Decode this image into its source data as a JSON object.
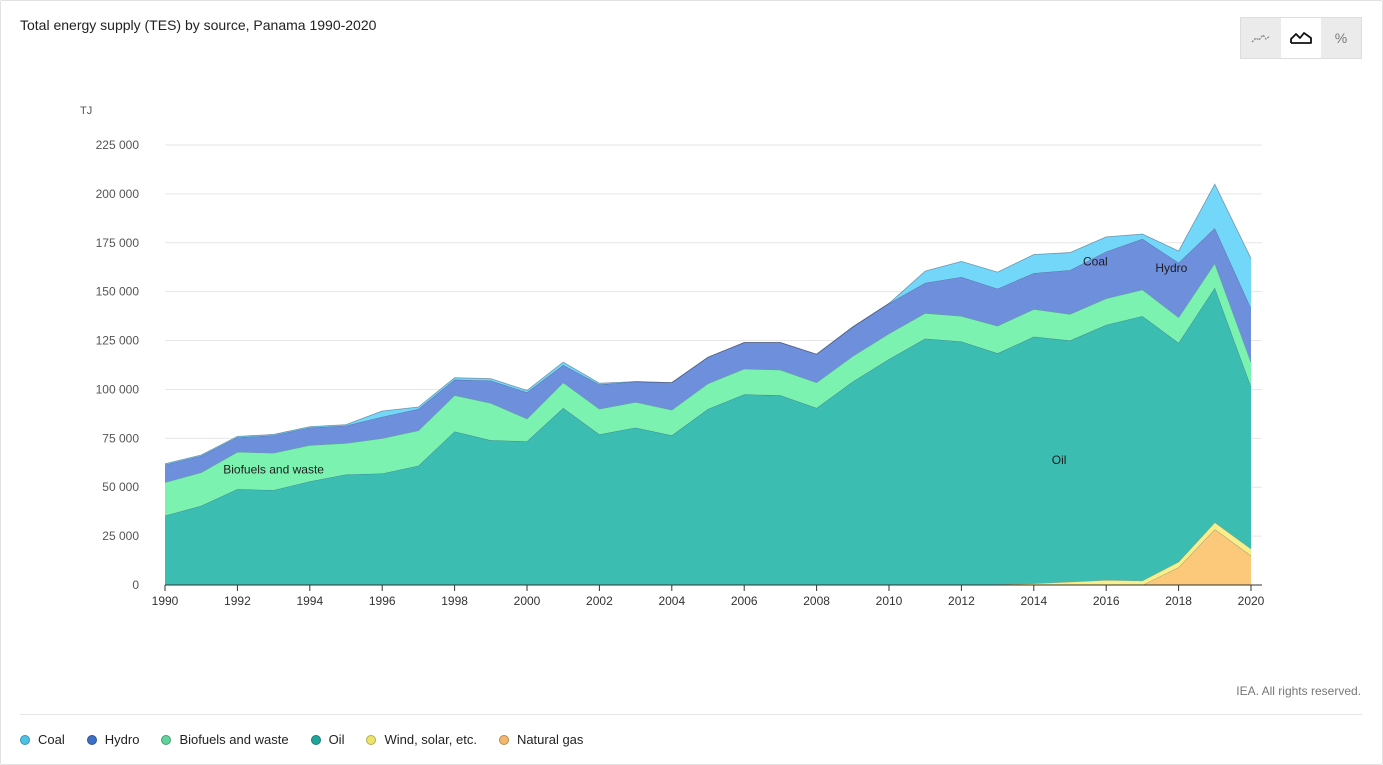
{
  "title": "Total energy supply (TES) by source, Panama 1990-2020",
  "credit": "IEA. All rights reserved.",
  "toolbar": {
    "buttons": [
      {
        "icon": "line-chart-icon",
        "active": false
      },
      {
        "icon": "area-chart-icon",
        "active": true
      },
      {
        "icon": "percent-icon",
        "label": "%",
        "active": false
      }
    ]
  },
  "legend": [
    {
      "label": "Coal",
      "color": "#4cc3e6"
    },
    {
      "label": "Hydro",
      "color": "#3c6fc6"
    },
    {
      "label": "Biofuels and waste",
      "color": "#5fd39a"
    },
    {
      "label": "Oil",
      "color": "#1fa59a"
    },
    {
      "label": "Wind, solar, etc.",
      "color": "#ece46a"
    },
    {
      "label": "Natural gas",
      "color": "#f4b86b"
    }
  ],
  "chart_data": {
    "type": "area",
    "stacked": true,
    "title": "Total energy supply (TES) by source, Panama 1990-2020",
    "ylabel": "TJ",
    "xlabel": "",
    "ylim": [
      0,
      225000
    ],
    "yticks": [
      0,
      25000,
      50000,
      75000,
      100000,
      125000,
      150000,
      175000,
      200000,
      225000
    ],
    "ytick_labels": [
      "0",
      "25 000",
      "50 000",
      "75 000",
      "100 000",
      "125 000",
      "150 000",
      "175 000",
      "200 000",
      "225 000"
    ],
    "xticks": [
      1990,
      1992,
      1994,
      1996,
      1998,
      2000,
      2002,
      2004,
      2006,
      2008,
      2010,
      2012,
      2014,
      2016,
      2018,
      2020
    ],
    "x": [
      1990,
      1991,
      1992,
      1993,
      1994,
      1995,
      1996,
      1997,
      1998,
      1999,
      2000,
      2001,
      2002,
      2003,
      2004,
      2005,
      2006,
      2007,
      2008,
      2009,
      2010,
      2011,
      2012,
      2013,
      2014,
      2015,
      2016,
      2017,
      2018,
      2019,
      2020
    ],
    "grid": true,
    "legend_position": "bottom",
    "series": [
      {
        "name": "Natural gas",
        "color": "#fcc97a",
        "values": [
          0,
          0,
          0,
          0,
          0,
          0,
          0,
          0,
          0,
          0,
          0,
          0,
          0,
          0,
          0,
          0,
          0,
          0,
          0,
          0,
          0,
          0,
          0,
          0,
          0,
          0,
          0,
          0,
          9000,
          28500,
          15000
        ]
      },
      {
        "name": "Wind, solar, etc.",
        "color": "#f7ef8a",
        "values": [
          0,
          0,
          0,
          0,
          0,
          0,
          0,
          0,
          0,
          0,
          0,
          0,
          0,
          0,
          0,
          0,
          0,
          0,
          0,
          0,
          0,
          0,
          0,
          300,
          800,
          1600,
          2500,
          2200,
          2800,
          3500,
          3500
        ]
      },
      {
        "name": "Oil",
        "color": "#3cbdb2",
        "values": [
          35500,
          40500,
          49000,
          48500,
          53000,
          56500,
          57000,
          61000,
          78500,
          74000,
          73500,
          90500,
          77000,
          80500,
          76500,
          90000,
          97500,
          97000,
          90500,
          104000,
          115500,
          126000,
          124500,
          118200,
          126200,
          123400,
          130500,
          135300,
          112000,
          120000,
          83000
        ]
      },
      {
        "name": "Biofuels and waste",
        "color": "#7cf2b0",
        "values": [
          17000,
          17000,
          19000,
          19000,
          18500,
          16000,
          18000,
          18000,
          18500,
          19000,
          11500,
          13000,
          13000,
          13000,
          13000,
          13000,
          13000,
          13000,
          13000,
          13000,
          13000,
          13000,
          13000,
          14000,
          14000,
          13500,
          13500,
          13500,
          13000,
          12500,
          12500
        ]
      },
      {
        "name": "Hydro",
        "color": "#6e8fdc",
        "values": [
          9000,
          8500,
          7500,
          9000,
          9000,
          9000,
          11000,
          11000,
          8000,
          11500,
          13500,
          9000,
          12500,
          10500,
          14000,
          13500,
          13500,
          14000,
          14500,
          15000,
          15500,
          15500,
          20000,
          19000,
          18500,
          22500,
          24000,
          26000,
          28000,
          18000,
          27500
        ]
      },
      {
        "name": "Coal",
        "color": "#73d7f9",
        "values": [
          500,
          500,
          500,
          500,
          500,
          500,
          3000,
          1000,
          1000,
          1000,
          1000,
          1500,
          700,
          0,
          0,
          0,
          0,
          0,
          0,
          0,
          0,
          6000,
          8000,
          8500,
          9500,
          9000,
          7500,
          2500,
          6000,
          22500,
          25500
        ]
      }
    ],
    "annotations": [
      {
        "text": "Biofuels and waste",
        "x": 1993,
        "y": 57000
      },
      {
        "text": "Oil",
        "x": 2014.7,
        "y": 62000
      },
      {
        "text": "Coal",
        "x": 2015.7,
        "y": 163500
      },
      {
        "text": "Hydro",
        "x": 2017.8,
        "y": 160000
      }
    ]
  }
}
